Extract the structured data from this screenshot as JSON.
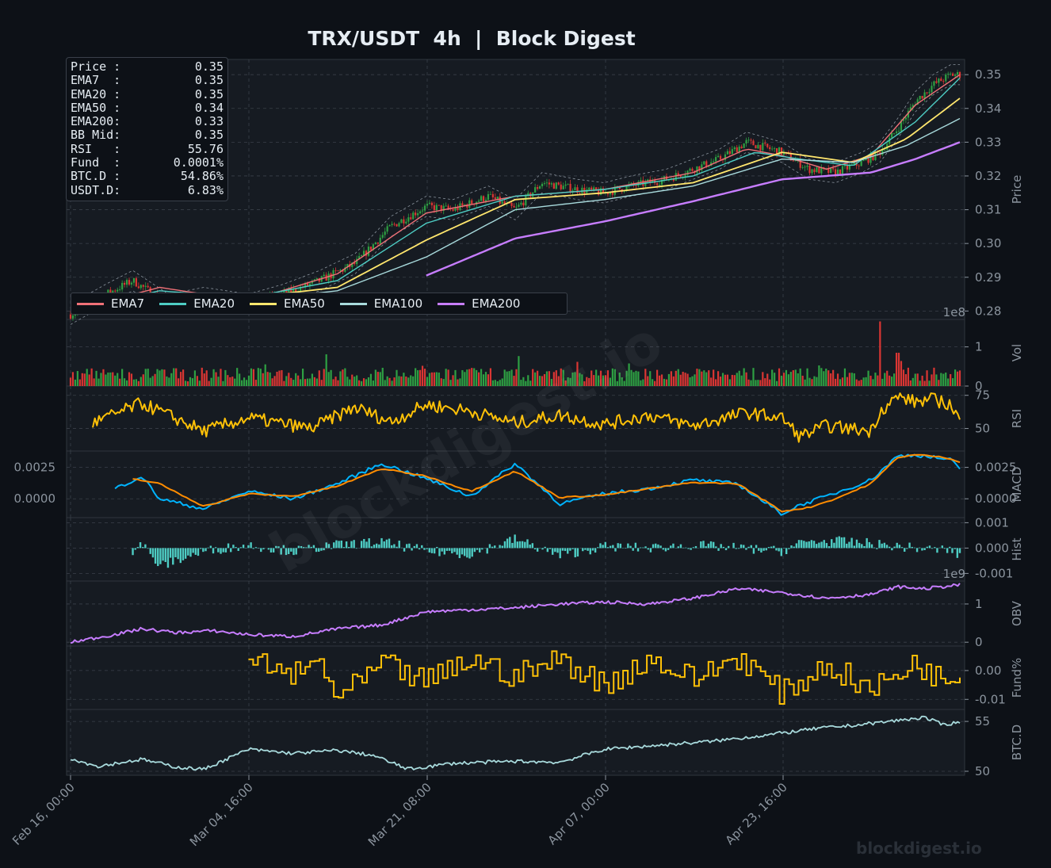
{
  "title": "TRX/USDT  4h  |  Block Digest",
  "watermark_center": "blockdigest.io",
  "watermark_corner": "blockdigest.io",
  "info_box": [
    {
      "label": "Price :",
      "value": "0.35"
    },
    {
      "label": "EMA7  :",
      "value": "0.35"
    },
    {
      "label": "EMA20 :",
      "value": "0.35"
    },
    {
      "label": "EMA50 :",
      "value": "0.34"
    },
    {
      "label": "EMA200:",
      "value": "0.33"
    },
    {
      "label": "BB Mid:",
      "value": "0.35"
    },
    {
      "label": "RSI   :",
      "value": "55.76"
    },
    {
      "label": "Fund  :",
      "value": "0.0001%"
    },
    {
      "label": "BTC.D :",
      "value": "54.86%"
    },
    {
      "label": "USDT.D:",
      "value": "6.83%"
    }
  ],
  "legend": [
    {
      "name": "EMA7",
      "color": "#f07178"
    },
    {
      "name": "EMA20",
      "color": "#4ecdc4"
    },
    {
      "name": "EMA50",
      "color": "#ffe66d"
    },
    {
      "name": "EMA100",
      "color": "#a8dadc"
    },
    {
      "name": "EMA200",
      "color": "#c77dff"
    }
  ],
  "colors": {
    "background": "#0d1117",
    "panel": "#161b22",
    "grid": "#3a404a",
    "up": "#2ea043",
    "down": "#da3633",
    "rsi": "#ffc107",
    "macd": "#00b4ff",
    "signal": "#ff8c00",
    "hist": "#4ecdc4",
    "obv": "#c77dff",
    "funding": "#ffc107",
    "btcd": "#a8dadc"
  },
  "chart_data": {
    "type": "line",
    "x_ticks": [
      "Feb 16, 00:00",
      "Mar 04, 16:00",
      "Mar 21, 08:00",
      "Apr 07, 00:00",
      "Apr 23, 16:00"
    ],
    "panels": [
      {
        "id": "price",
        "ylabel": "Price",
        "yticks": [
          "0.28",
          "0.29",
          "0.30",
          "0.31",
          "0.32",
          "0.33",
          "0.34",
          "0.35"
        ],
        "ylim": [
          0.2775,
          0.3545
        ],
        "series": [
          {
            "name": "Price",
            "x": [
              0,
              0.04,
              0.07,
              0.11,
              0.15,
              0.2,
              0.24,
              0.28,
              0.32,
              0.36,
              0.4,
              0.43,
              0.47,
              0.5,
              0.53,
              0.57,
              0.6,
              0.63,
              0.67,
              0.7,
              0.73,
              0.76,
              0.8,
              0.83,
              0.86,
              0.89,
              0.91,
              0.93,
              0.95,
              0.97,
              0.99,
              1
            ],
            "y": [
              0.279,
              0.285,
              0.289,
              0.282,
              0.284,
              0.282,
              0.285,
              0.289,
              0.294,
              0.305,
              0.311,
              0.31,
              0.314,
              0.31,
              0.318,
              0.316,
              0.315,
              0.317,
              0.319,
              0.322,
              0.325,
              0.33,
              0.327,
              0.322,
              0.321,
              0.324,
              0.327,
              0.334,
              0.342,
              0.347,
              0.35,
              0.35
            ]
          },
          {
            "name": "EMA7",
            "x": [
              0,
              0.1,
              0.2,
              0.3,
              0.4,
              0.5,
              0.6,
              0.7,
              0.76,
              0.8,
              0.85,
              0.9,
              0.95,
              1
            ],
            "y": [
              0.28,
              0.287,
              0.283,
              0.291,
              0.309,
              0.314,
              0.316,
              0.321,
              0.328,
              0.326,
              0.322,
              0.326,
              0.341,
              0.35
            ]
          },
          {
            "name": "EMA20",
            "x": [
              0,
              0.1,
              0.2,
              0.3,
              0.4,
              0.5,
              0.6,
              0.7,
              0.77,
              0.82,
              0.88,
              0.95,
              1
            ],
            "y": [
              0.28,
              0.286,
              0.284,
              0.289,
              0.306,
              0.314,
              0.316,
              0.32,
              0.327,
              0.325,
              0.323,
              0.336,
              0.349
            ]
          },
          {
            "name": "EMA50",
            "x": [
              0,
              0.1,
              0.2,
              0.3,
              0.4,
              0.5,
              0.6,
              0.7,
              0.8,
              0.88,
              0.94,
              1
            ],
            "y": [
              0.281,
              0.284,
              0.284,
              0.287,
              0.301,
              0.313,
              0.315,
              0.318,
              0.327,
              0.324,
              0.331,
              0.343
            ]
          },
          {
            "name": "EMA100",
            "x": [
              0.2,
              0.3,
              0.4,
              0.5,
              0.6,
              0.7,
              0.8,
              0.88,
              0.94,
              1
            ],
            "y": [
              0.283,
              0.286,
              0.296,
              0.31,
              0.313,
              0.317,
              0.325,
              0.324,
              0.329,
              0.337
            ]
          },
          {
            "name": "EMA200",
            "x": [
              0.4,
              0.5,
              0.6,
              0.7,
              0.8,
              0.9,
              0.95,
              1
            ],
            "y": [
              0.2905,
              0.3015,
              0.3065,
              0.3125,
              0.319,
              0.321,
              0.325,
              0.33
            ]
          }
        ]
      },
      {
        "id": "volume",
        "ylabel": "Vol",
        "yticks": [
          "0",
          "1"
        ],
        "offset_label": "1e8",
        "ylim": [
          0,
          1.7
        ]
      },
      {
        "id": "rsi",
        "ylabel": "RSI",
        "yticks": [
          "50",
          "75"
        ],
        "ylim": [
          33,
          82
        ],
        "series": [
          {
            "name": "RSI",
            "x": [
              0.025,
              0.08,
              0.15,
              0.2,
              0.27,
              0.32,
              0.36,
              0.4,
              0.45,
              0.5,
              0.55,
              0.6,
              0.65,
              0.7,
              0.76,
              0.8,
              0.82,
              0.85,
              0.9,
              0.91,
              0.93,
              0.95,
              0.97,
              0.99,
              1
            ],
            "y": [
              54,
              69,
              48,
              58,
              50,
              66,
              55,
              68,
              63,
              54,
              60,
              53,
              60,
              52,
              62,
              58,
              44,
              52,
              48,
              63,
              74,
              70,
              72,
              68,
              56
            ]
          }
        ]
      },
      {
        "id": "macd",
        "ylabel": "MACD",
        "yticks": [
          "0.0000",
          "0.0025"
        ],
        "ylim": [
          -0.0015,
          0.0038
        ],
        "series": [
          {
            "name": "MACD",
            "x": [
              0.05,
              0.08,
              0.1,
              0.15,
              0.2,
              0.25,
              0.3,
              0.35,
              0.4,
              0.45,
              0.5,
              0.55,
              0.6,
              0.65,
              0.7,
              0.75,
              0.8,
              0.82,
              0.85,
              0.9,
              0.93,
              0.95,
              0.97,
              0.99,
              1
            ],
            "y": [
              0.0008,
              0.0018,
              0.0,
              -0.0008,
              0.0006,
              0.0,
              0.0012,
              0.0028,
              0.0016,
              0.0002,
              0.0028,
              -0.0004,
              0.0004,
              0.0008,
              0.0015,
              0.0012,
              -0.0012,
              -0.0005,
              0.0002,
              0.0015,
              0.0034,
              0.0035,
              0.0033,
              0.0031,
              0.0023
            ]
          },
          {
            "name": "Signal",
            "x": [
              0.07,
              0.1,
              0.15,
              0.2,
              0.25,
              0.3,
              0.35,
              0.4,
              0.45,
              0.5,
              0.55,
              0.6,
              0.65,
              0.7,
              0.75,
              0.8,
              0.83,
              0.86,
              0.9,
              0.93,
              0.95,
              0.97,
              0.99,
              1
            ],
            "y": [
              0.0016,
              0.0012,
              -0.0006,
              0.0004,
              0.0002,
              0.001,
              0.0024,
              0.0018,
              0.0006,
              0.0022,
              0.0001,
              0.0003,
              0.0008,
              0.0013,
              0.0012,
              -0.001,
              -0.0007,
              0.0,
              0.0012,
              0.0033,
              0.0035,
              0.0034,
              0.0032,
              0.0029
            ]
          }
        ]
      },
      {
        "id": "hist",
        "ylabel": "Hist",
        "yticks": [
          "-0.001",
          "0.000",
          "0.001"
        ],
        "offset_label": "1e9",
        "ylim": [
          -0.0013,
          0.0012
        ]
      },
      {
        "id": "obv",
        "ylabel": "OBV",
        "yticks": [
          "0",
          "1"
        ],
        "ylim": [
          -0.1,
          1.6
        ],
        "series": [
          {
            "name": "OBV",
            "x": [
              0,
              0.05,
              0.08,
              0.12,
              0.16,
              0.2,
              0.25,
              0.3,
              0.35,
              0.4,
              0.45,
              0.5,
              0.55,
              0.6,
              0.65,
              0.7,
              0.75,
              0.8,
              0.85,
              0.9,
              0.93,
              0.96,
              1
            ],
            "y": [
              0.0,
              0.2,
              0.35,
              0.25,
              0.3,
              0.2,
              0.15,
              0.35,
              0.45,
              0.8,
              0.85,
              0.9,
              1.0,
              1.05,
              1.0,
              1.15,
              1.4,
              1.3,
              1.15,
              1.25,
              1.45,
              1.4,
              1.5
            ]
          }
        ]
      },
      {
        "id": "funding",
        "ylabel": "Fund%",
        "yticks": [
          "-0.01",
          "0.00"
        ],
        "ylim": [
          -0.0135,
          0.0085
        ],
        "series": [
          {
            "name": "Funding",
            "x": [
              0.2,
              0.25,
              0.28,
              0.3,
              0.35,
              0.4,
              0.45,
              0.5,
              0.55,
              0.6,
              0.65,
              0.7,
              0.75,
              0.8,
              0.85,
              0.9,
              0.95,
              0.98,
              1
            ],
            "y": [
              0.004,
              -0.002,
              0.003,
              -0.01,
              0.002,
              -0.004,
              0.004,
              -0.002,
              0.004,
              -0.005,
              0.004,
              -0.003,
              0.005,
              -0.008,
              0.002,
              -0.007,
              0.003,
              -0.004,
              0.0
            ]
          }
        ]
      },
      {
        "id": "btcd",
        "ylabel": "BTC.D",
        "yticks": [
          "50",
          "55"
        ],
        "ylim": [
          49.6,
          56.2
        ],
        "series": [
          {
            "name": "BTC.D",
            "x": [
              0,
              0.03,
              0.08,
              0.12,
              0.15,
              0.2,
              0.25,
              0.3,
              0.34,
              0.38,
              0.43,
              0.5,
              0.55,
              0.6,
              0.66,
              0.72,
              0.78,
              0.84,
              0.88,
              0.93,
              0.96,
              0.98,
              1
            ],
            "y": [
              51.3,
              50.5,
              51.2,
              50.4,
              50.2,
              52.2,
              51.8,
              52.1,
              51.6,
              50.2,
              50.8,
              51.0,
              50.9,
              52.2,
              52.6,
              53.0,
              53.6,
              54.3,
              54.6,
              55.1,
              55.4,
              54.7,
              54.9
            ]
          }
        ]
      }
    ]
  }
}
